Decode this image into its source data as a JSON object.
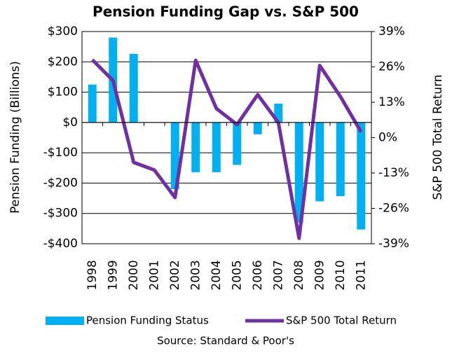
{
  "chart_data": {
    "type": "bar_line",
    "title": "Pension Funding Gap vs. S&P 500",
    "ylabel": "Pension Funding (Billions)",
    "y2label": "S&P 500 Total Return",
    "source": "Source: Standard  & Poor's",
    "categories": [
      "1998",
      "1999",
      "2000",
      "2001",
      "2002",
      "2003",
      "2004",
      "2005",
      "2006",
      "2007",
      "2008",
      "2009",
      "2010",
      "2011"
    ],
    "series": [
      {
        "name": "Pension Funding Status",
        "color": "#00b0f0",
        "kind": "bar",
        "values": [
          125,
          280,
          226,
          0,
          -220,
          -164,
          -164,
          -140,
          -39,
          62,
          -330,
          -260,
          -243,
          -353
        ]
      },
      {
        "name": "S&P 500 Total Return",
        "color": "#7030a0",
        "kind": "line",
        "axis": "y2",
        "values": [
          28.6,
          21,
          -9.1,
          -11.9,
          -22,
          28.4,
          10.7,
          4.8,
          15.8,
          5.5,
          -37,
          26.5,
          15.1,
          2.1
        ]
      }
    ],
    "ylim": [
      -400,
      300
    ],
    "yticks": [
      {
        "value": 300,
        "label": "$300"
      },
      {
        "value": 200,
        "label": "$200"
      },
      {
        "value": 100,
        "label": "$100"
      },
      {
        "value": 0,
        "label": "$0"
      },
      {
        "value": -100,
        "label": "-$100"
      },
      {
        "value": -200,
        "label": "-$200"
      },
      {
        "value": -300,
        "label": "-$300"
      },
      {
        "value": -400,
        "label": "-$400"
      }
    ],
    "y2lim": [
      -39,
      39
    ],
    "y2ticks": [
      {
        "value": 39,
        "label": "39%"
      },
      {
        "value": 26,
        "label": "26%"
      },
      {
        "value": 13,
        "label": "13%"
      },
      {
        "value": 0,
        "label": "0%"
      },
      {
        "value": -13,
        "label": "-13%"
      },
      {
        "value": -26,
        "label": "-26%"
      },
      {
        "value": -39,
        "label": "-39%"
      }
    ],
    "grid": true,
    "legend": "bottom"
  }
}
